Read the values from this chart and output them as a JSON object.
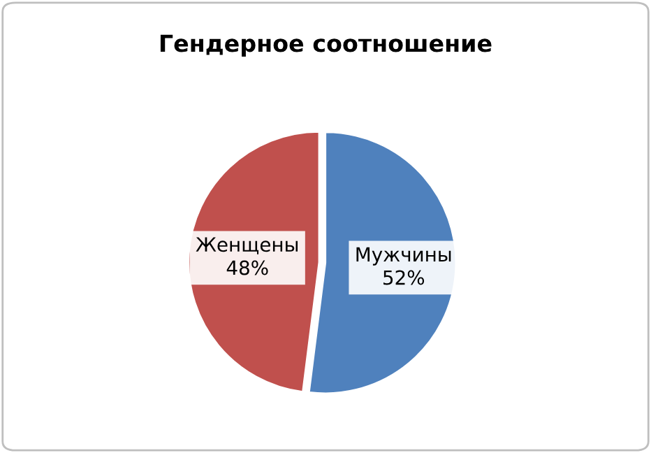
{
  "chart_data": {
    "type": "pie",
    "title": "Гендерное соотношение",
    "categories": [
      "Мужчины",
      "Женщены"
    ],
    "values": [
      52,
      48
    ],
    "colors": [
      "#4f81bd",
      "#c0504d"
    ],
    "value_labels": [
      "52%",
      "48%"
    ],
    "legend": false
  }
}
